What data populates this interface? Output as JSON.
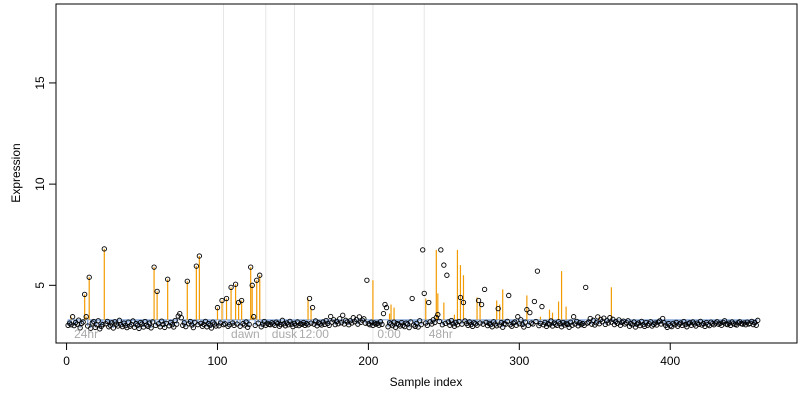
{
  "chart_data": {
    "type": "scatter",
    "title": "",
    "xlabel": "Sample index",
    "ylabel": "Expression",
    "xlim": [
      -7,
      484
    ],
    "ylim": [
      2.15,
      18.9
    ],
    "xticks": [
      0,
      100,
      200,
      300,
      400
    ],
    "yticks": [
      5,
      10,
      15
    ],
    "grid": false,
    "baseline": 3.3,
    "group_boundaries": [
      104,
      132,
      151,
      203,
      237
    ],
    "group_labels": [
      {
        "label": "24hr",
        "x": 3
      },
      {
        "label": "dawn",
        "x": 107
      },
      {
        "label": "dusk",
        "x": 134
      },
      {
        "label": "12:00",
        "x": 152
      },
      {
        "label": "0:00",
        "x": 204
      },
      {
        "label": "48hr",
        "x": 238
      }
    ],
    "highlighted": {
      "x": [
        3,
        12,
        13,
        15,
        25,
        58,
        60,
        67,
        80,
        86,
        88,
        100,
        103,
        106,
        109,
        112,
        114,
        116,
        122,
        123,
        124,
        126,
        128,
        160,
        162,
        203,
        214,
        215,
        217,
        238,
        245,
        246,
        250,
        257,
        259,
        261,
        263,
        272,
        274,
        285,
        287,
        289,
        305,
        314,
        320,
        322,
        326,
        328,
        331,
        353,
        361
      ],
      "y": [
        3.45,
        4.55,
        3.45,
        5.4,
        6.8,
        5.9,
        4.7,
        5.3,
        5.2,
        5.95,
        6.45,
        3.9,
        4.25,
        4.35,
        4.9,
        5.05,
        4.15,
        4.25,
        5.9,
        5.0,
        3.45,
        5.25,
        5.5,
        4.35,
        3.9,
        5.25,
        3.6,
        4.05,
        3.9,
        4.35,
        6.75,
        4.6,
        4.15,
        3.55,
        6.75,
        6.0,
        5.5,
        4.4,
        4.15,
        4.25,
        4.05,
        4.8,
        4.5,
        3.45,
        3.8,
        3.65,
        4.2,
        5.7,
        3.95,
        3.45,
        4.9
      ]
    },
    "series": [
      {
        "x_start": 1,
        "x_end": 462,
        "values": [
          3.02,
          3.13,
          3.05,
          3.45,
          3.01,
          3.16,
          3.08,
          3.28,
          2.9,
          3.12,
          3.19,
          4.55,
          3.45,
          2.99,
          5.4,
          2.88,
          3.14,
          3.21,
          2.92,
          3.05,
          3.25,
          2.85,
          2.97,
          3.06,
          6.8,
          3.1,
          3.22,
          2.95,
          3.03,
          3.15,
          2.89,
          3.2,
          3.08,
          2.99,
          3.27,
          3.05,
          2.96,
          3.13,
          3.01,
          2.91,
          3.18,
          2.98,
          3.06,
          3.24,
          2.93,
          3.11,
          3.03,
          2.87,
          3.16,
          3.09,
          2.94,
          3.21,
          3.04,
          2.97,
          3.14,
          2.9,
          3.19,
          5.9,
          3.02,
          4.7,
          3.1,
          2.95,
          3.23,
          3.07,
          2.92,
          3.12,
          5.3,
          3.0,
          3.17,
          3.05,
          2.94,
          3.26,
          3.08,
          3.48,
          3.6,
          3.4,
          3.02,
          3.15,
          2.96,
          5.2,
          3.1,
          3.21,
          3.04,
          2.91,
          3.17,
          5.95,
          3.06,
          6.45,
          3.12,
          2.98,
          3.07,
          3.22,
          2.95,
          3.11,
          3.03,
          2.89,
          3.18,
          3.09,
          2.99,
          3.9,
          3.0,
          3.14,
          4.25,
          3.06,
          3.1,
          4.35,
          2.97,
          3.05,
          4.9,
          3.14,
          3.02,
          5.05,
          3.09,
          4.15,
          2.98,
          4.25,
          3.11,
          3.04,
          3.19,
          2.93,
          3.07,
          5.9,
          5.0,
          3.45,
          3.02,
          5.25,
          3.13,
          5.5,
          2.95,
          3.08,
          3.21,
          3.03,
          3.12,
          3.07,
          3.05,
          3.15,
          3.09,
          3.02,
          3.18,
          3.11,
          2.98,
          3.06,
          3.27,
          3.1,
          3.0,
          3.14,
          3.05,
          3.22,
          3.08,
          2.96,
          3.12,
          3.03,
          3.19,
          3.01,
          3.1,
          3.07,
          3.16,
          3.02,
          3.11,
          3.05,
          4.35,
          3.13,
          3.9,
          3.08,
          3.24,
          3.0,
          3.15,
          3.1,
          3.04,
          3.19,
          3.07,
          3.26,
          3.12,
          3.02,
          3.46,
          3.18,
          3.3,
          3.06,
          3.22,
          3.1,
          3.35,
          3.15,
          3.52,
          3.09,
          3.27,
          3.19,
          3.05,
          3.25,
          3.14,
          3.4,
          3.2,
          3.31,
          3.08,
          3.44,
          3.17,
          3.28,
          3.35,
          3.13,
          5.25,
          3.1,
          3.05,
          3.18,
          3.02,
          3.14,
          3.08,
          3.12,
          3.03,
          3.2,
          3.07,
          3.6,
          4.05,
          3.9,
          2.95,
          3.15,
          3.09,
          3.01,
          3.18,
          2.93,
          3.11,
          3.06,
          2.99,
          3.16,
          3.03,
          2.96,
          3.13,
          3.08,
          2.91,
          3.19,
          4.35,
          3.04,
          2.97,
          3.12,
          2.94,
          3.25,
          3.06,
          6.75,
          4.6,
          3.14,
          3.02,
          4.15,
          3.2,
          3.09,
          3.3,
          3.16,
          3.41,
          3.55,
          3.22,
          6.75,
          3.05,
          6.0,
          3.12,
          5.5,
          3.19,
          3.03,
          3.26,
          3.1,
          2.98,
          3.17,
          3.05,
          3.21,
          4.4,
          3.08,
          4.15,
          3.24,
          3.12,
          3.02,
          3.19,
          3.06,
          2.97,
          3.15,
          3.1,
          3.03,
          4.25,
          3.14,
          4.05,
          3.08,
          4.8,
          3.17,
          3.01,
          3.12,
          3.06,
          2.95,
          3.2,
          3.09,
          3.0,
          3.85,
          3.04,
          3.16,
          2.93,
          3.11,
          3.08,
          3.22,
          4.5,
          3.05,
          2.98,
          3.13,
          3.19,
          3.03,
          3.45,
          3.1,
          3.3,
          3.07,
          2.94,
          3.18,
          3.8,
          3.02,
          3.65,
          3.14,
          3.09,
          4.2,
          3.21,
          5.7,
          3.01,
          3.12,
          3.95,
          3.05,
          3.17,
          2.97,
          3.11,
          3.06,
          3.24,
          2.99,
          3.14,
          3.08,
          3.02,
          3.2,
          3.1,
          2.95,
          3.16,
          3.04,
          3.12,
          3.07,
          2.93,
          3.18,
          3.03,
          3.45,
          3.09,
          3.22,
          3.0,
          3.15,
          3.06,
          3.11,
          3.02,
          4.9,
          3.13,
          3.19,
          3.36,
          3.08,
          3.27,
          3.04,
          3.15,
          3.44,
          3.1,
          3.31,
          3.2,
          3.38,
          3.07,
          3.26,
          3.14,
          3.4,
          3.18,
          3.32,
          3.06,
          3.21,
          3.12,
          3.29,
          3.03,
          3.17,
          3.23,
          3.09,
          3.15,
          3.25,
          2.98,
          3.11,
          3.05,
          3.19,
          2.94,
          3.08,
          3.14,
          3.01,
          3.22,
          3.06,
          2.97,
          3.16,
          3.03,
          3.1,
          3.2,
          2.99,
          3.07,
          3.13,
          3.04,
          3.18,
          3.24,
          3.09,
          3.36,
          3.15,
          3.02,
          2.92,
          3.11,
          3.0,
          2.96,
          3.12,
          3.05,
          3.17,
          2.98,
          3.08,
          3.14,
          3.02,
          3.21,
          3.06,
          2.95,
          3.1,
          3.15,
          3.03,
          3.19,
          3.09,
          2.99,
          3.13,
          3.07,
          3.22,
          3.04,
          3.11,
          2.97,
          3.16,
          3.06,
          3.01,
          3.18,
          3.1,
          3.05,
          3.14,
          3.2,
          3.08,
          3.12,
          3.03,
          3.17,
          3.25,
          3.09,
          3.06,
          3.13,
          3.02,
          3.19,
          3.1,
          3.07,
          3.04,
          3.15,
          3.2,
          3.11,
          3.08,
          3.14,
          3.05,
          3.18,
          3.09,
          3.12,
          3.22,
          3.06,
          3.16,
          3.03,
          3.27
        ]
      }
    ],
    "colors": {
      "highlight_stem": "#f29b00",
      "baseline_band": "#87a9d9",
      "group_line": "#e6e6e6",
      "point_stroke": "#000000",
      "axis": "#000000"
    }
  }
}
